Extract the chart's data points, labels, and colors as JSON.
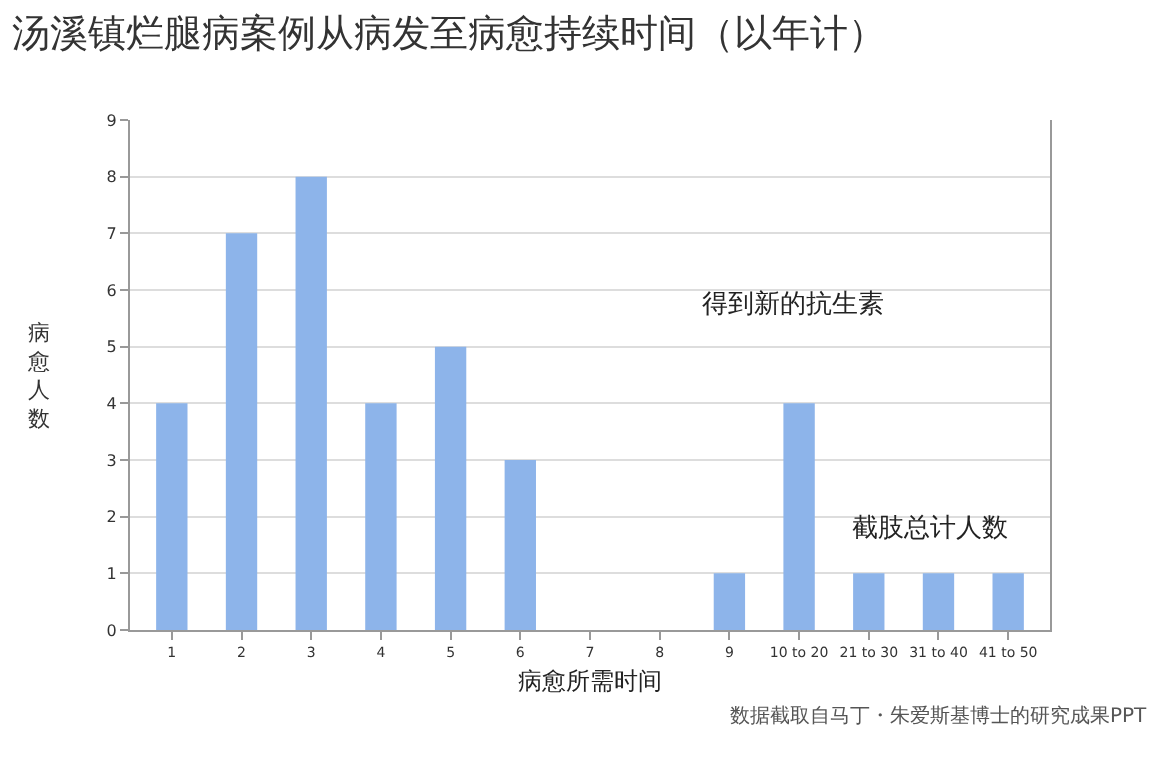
{
  "chart_data": {
    "type": "bar",
    "title": "汤溪镇烂腿病案例从病发至病愈持续时间（以年计）",
    "xlabel": "病愈所需时间",
    "ylabel": "病愈人数",
    "categories": [
      "1",
      "2",
      "3",
      "4",
      "5",
      "6",
      "7",
      "8",
      "9",
      "10 to 20",
      "21 to 30",
      "31 to 40",
      "41 to 50"
    ],
    "values": [
      4,
      7,
      8,
      4,
      5,
      3,
      0,
      0,
      1,
      4,
      1,
      1,
      1
    ],
    "color": "#8db4ea",
    "ylim": [
      0,
      9
    ],
    "yticks": [
      0,
      1,
      2,
      3,
      4,
      5,
      6,
      7,
      8,
      9
    ],
    "grid": "y",
    "annotations": [
      "得到新的抗生素",
      "截肢总计人数",
      "数据截取自马丁・朱爱斯基博士的研究成果PPT"
    ]
  }
}
